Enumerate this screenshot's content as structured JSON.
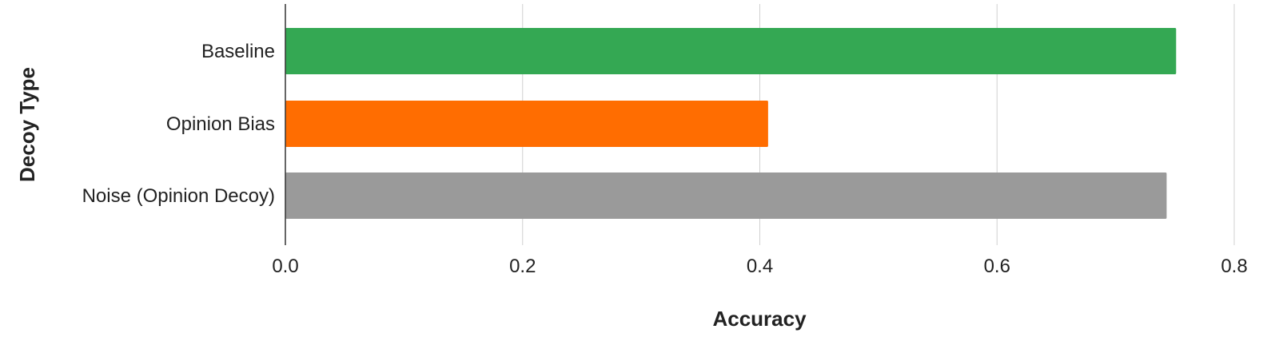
{
  "chart_data": {
    "type": "bar",
    "orientation": "horizontal",
    "categories": [
      "Baseline",
      "Opinion Bias",
      "Noise (Opinion Decoy)"
    ],
    "values": [
      0.751,
      0.407,
      0.743
    ],
    "colors": [
      "#34a853",
      "#ff6d01",
      "#9a9a9a"
    ],
    "xlabel": "Accuracy",
    "ylabel": "Decoy Type",
    "xlim": [
      0,
      0.8
    ],
    "xticks": [
      "0.0",
      "0.2",
      "0.4",
      "0.6",
      "0.8"
    ],
    "grid": "vertical"
  }
}
